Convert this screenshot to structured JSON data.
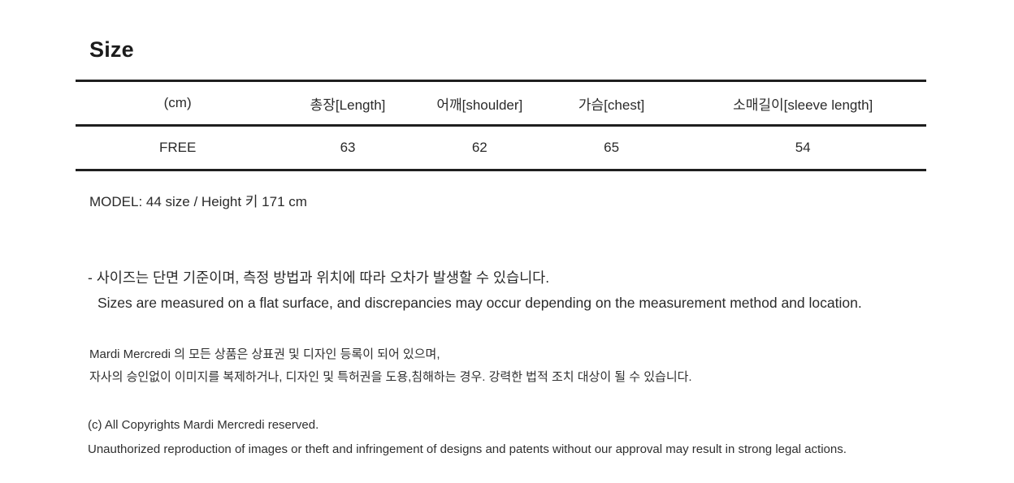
{
  "page": {
    "background": "#ffffff",
    "text_color": "#2a2a2a",
    "rule_color": "#1f1f1f"
  },
  "size_section": {
    "heading": "Size",
    "table": {
      "unit": "(cm)",
      "headers": [
        "(cm)",
        "총장[Length]",
        "어깨[shoulder]",
        "가슴[chest]",
        "소매길이[sleeve length]"
      ],
      "rows": [
        {
          "size": "FREE",
          "length": "63",
          "shoulder": "62",
          "chest": "65",
          "sleeve_length": "54"
        }
      ]
    },
    "model_info": "MODEL: 44 size / Height 키 171 cm"
  },
  "notes": {
    "korean": "- 사이즈는 단면 기준이며, 측정 방법과 위치에 따라 오차가 발생할 수 있습니다.",
    "english": "Sizes are measured on a flat surface, and discrepancies may occur depending on the measurement method and location."
  },
  "legal": {
    "korean_line1": "Mardi Mercredi 의 모든 상품은 상표권 및 디자인 등록이 되어 있으며,",
    "korean_line2": "자사의 승인없이 이미지를 복제하거나, 디자인 및 특허권을 도용,침해하는 경우. 강력한 법적 조치 대상이 될 수 있습니다.",
    "copyright": "(c) All Copyrights Mardi Mercredi reserved.",
    "english": "Unauthorized reproduction of images or theft and infringement of designs and patents without our approval may result in strong legal actions."
  }
}
